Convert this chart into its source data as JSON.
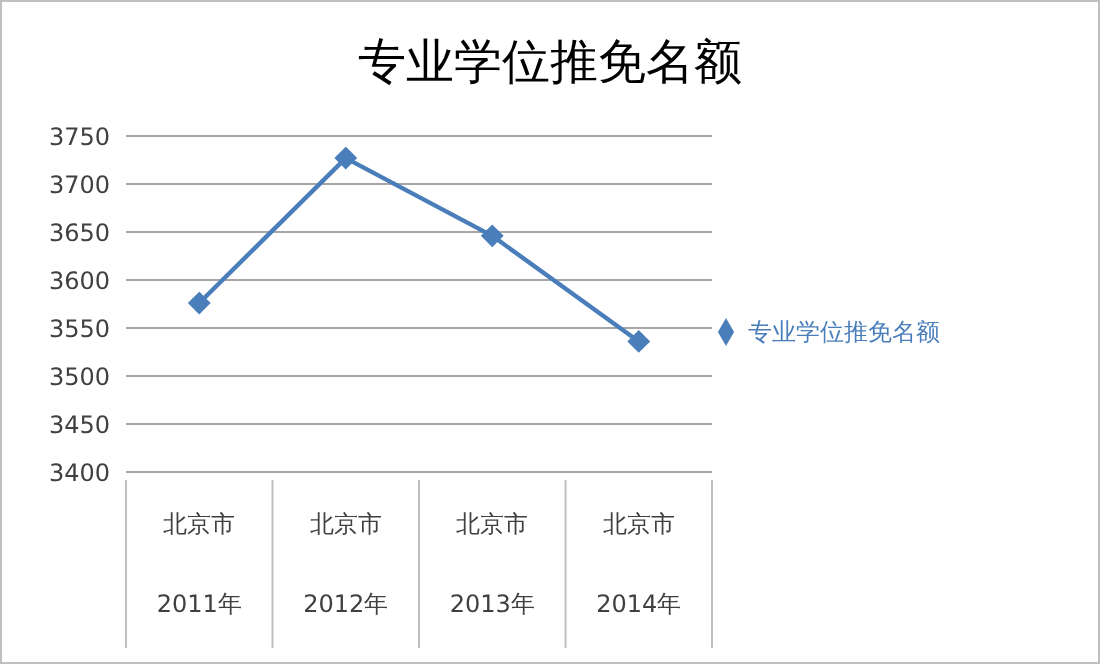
{
  "chart_data": {
    "type": "line",
    "title": "专业学位推免名额",
    "categories": [
      "北京市\n2011年",
      "北京市\n2012年",
      "北京市\n2013年",
      "北京市\n2014年"
    ],
    "series": [
      {
        "name": "专业学位推免名额",
        "color": "#4a7ebb",
        "values": [
          3576,
          3727,
          3646,
          3536
        ]
      }
    ],
    "ylim": [
      3400,
      3750
    ],
    "yticks": [
      3400,
      3450,
      3500,
      3550,
      3600,
      3650,
      3700,
      3750
    ],
    "grid": "y",
    "legend": "right",
    "marker": "diamond",
    "line_style": "solid"
  }
}
